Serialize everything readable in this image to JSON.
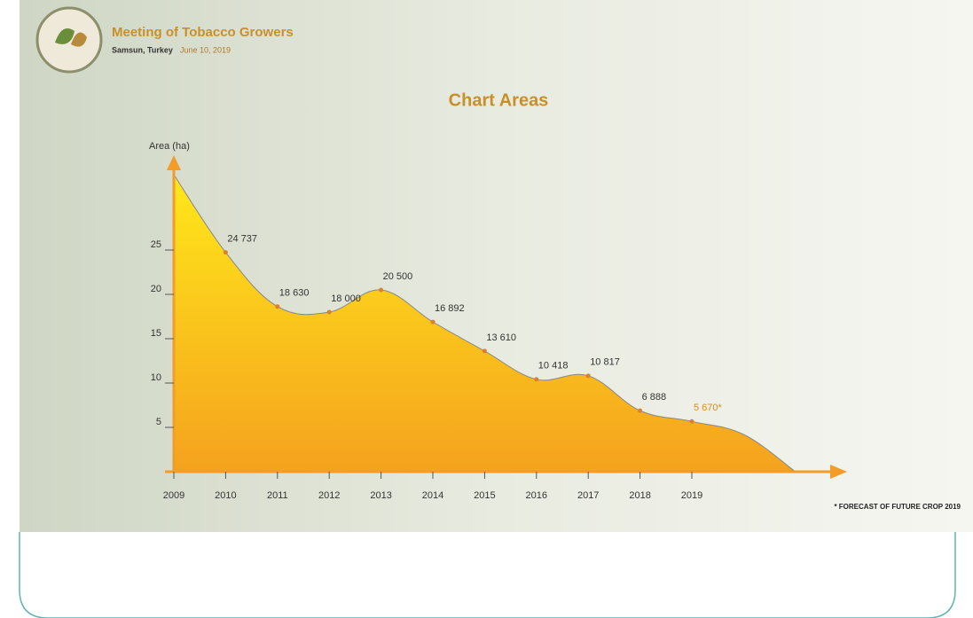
{
  "header": {
    "title": "Meeting of Tobacco Growers",
    "place": "Samsun, Turkey",
    "date": "June 10, 2019"
  },
  "footnote": "* FORECAST OF FUTURE CROP 2019",
  "chart_data": {
    "type": "area",
    "title": "Chart Areas",
    "y_label": "Area (ha)",
    "categories": [
      "2009",
      "2010",
      "2011",
      "2012",
      "2013",
      "2014",
      "2015",
      "2016",
      "2017",
      "2018",
      "2019",
      null,
      null
    ],
    "values": [
      33.5,
      24.737,
      18.63,
      18.0,
      20.5,
      16.892,
      13.61,
      10.418,
      10.817,
      6.888,
      5.67,
      4.2,
      0
    ],
    "value_labels": [
      null,
      "24 737",
      "18 630",
      "18 000",
      "20 500",
      "16 892",
      "13 610",
      "10 418",
      "10 817",
      "6 888",
      "5 670*",
      null,
      null
    ],
    "ylim": [
      0,
      35
    ],
    "yticks": [
      5,
      10,
      15,
      20,
      25
    ],
    "color": "#f7b51e",
    "grid": false
  }
}
